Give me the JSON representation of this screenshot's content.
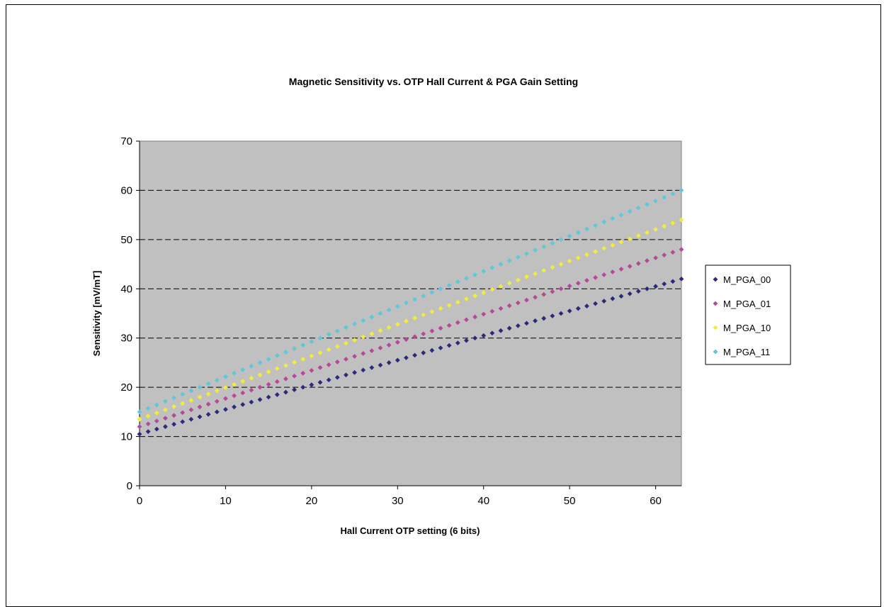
{
  "chart_data": {
    "type": "scatter",
    "title": "Magnetic Sensitivity vs. OTP Hall Current & PGA Gain Setting",
    "xlabel": "Hall Current OTP setting (6 bits)",
    "ylabel": "Sensitivity [mV/mT]",
    "xlim": [
      0,
      63
    ],
    "ylim": [
      0,
      70
    ],
    "xticks": [
      "0",
      "10",
      "20",
      "30",
      "40",
      "50",
      "60"
    ],
    "yticks": [
      "0",
      "10",
      "20",
      "30",
      "40",
      "50",
      "60",
      "70"
    ],
    "grid": "horizontal dashed",
    "legend_position": "right",
    "plot_background": "#c0c0c0",
    "x": {
      "start": 0,
      "end": 63,
      "step": 1
    },
    "series": [
      {
        "name": "M_PGA_00",
        "color": "#2b2a7a",
        "y_start": 10.5,
        "y_end": 42
      },
      {
        "name": "M_PGA_01",
        "color": "#b8479a",
        "y_start": 12,
        "y_end": 48
      },
      {
        "name": "M_PGA_10",
        "color": "#f2ec3a",
        "y_start": 13.5,
        "y_end": 54
      },
      {
        "name": "M_PGA_11",
        "color": "#5fc8d8",
        "y_start": 15,
        "y_end": 60
      }
    ]
  }
}
